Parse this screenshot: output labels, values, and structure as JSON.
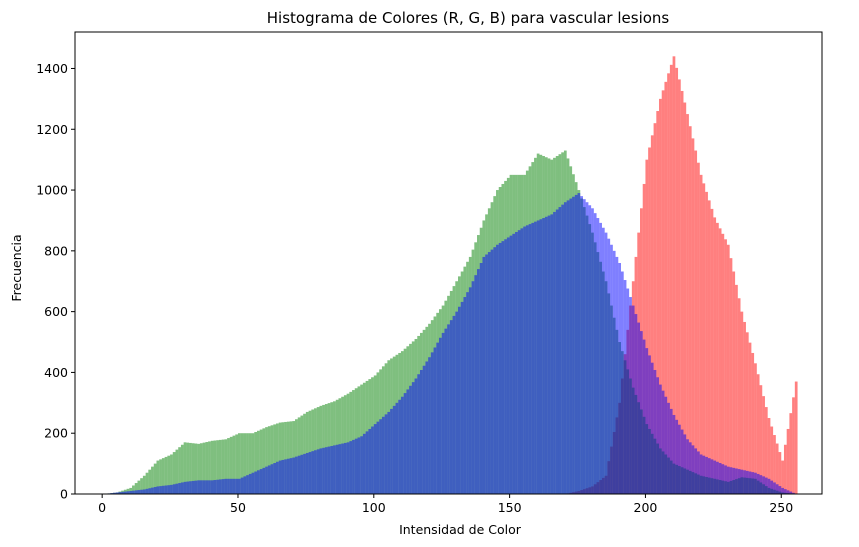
{
  "chart_data": {
    "type": "bar",
    "title": "Histograma de Colores (R, G, B) para vascular lesions",
    "xlabel": "Intensidad de Color",
    "ylabel": "Frecuencia",
    "xlim": [
      -10,
      265
    ],
    "ylim": [
      0,
      1520
    ],
    "xticks": [
      0,
      50,
      100,
      150,
      200,
      250
    ],
    "yticks": [
      0,
      200,
      400,
      600,
      800,
      1000,
      1200,
      1400
    ],
    "x": [
      0,
      5,
      10,
      15,
      20,
      25,
      30,
      35,
      40,
      45,
      50,
      55,
      60,
      65,
      70,
      75,
      80,
      85,
      90,
      95,
      100,
      105,
      110,
      115,
      120,
      125,
      130,
      135,
      140,
      145,
      150,
      155,
      160,
      165,
      170,
      175,
      180,
      185,
      190,
      195,
      200,
      205,
      210,
      215,
      220,
      225,
      230,
      235,
      240,
      245,
      250,
      255
    ],
    "series": [
      {
        "name": "R",
        "color": "#ff0000",
        "alpha": 0.5,
        "values": [
          0,
          0,
          0,
          0,
          0,
          0,
          0,
          0,
          0,
          0,
          0,
          0,
          0,
          0,
          0,
          0,
          0,
          0,
          0,
          0,
          0,
          0,
          0,
          0,
          0,
          0,
          0,
          0,
          0,
          0,
          0,
          0,
          0,
          0,
          0,
          10,
          25,
          60,
          300,
          700,
          1100,
          1300,
          1440,
          1250,
          1050,
          910,
          820,
          600,
          430,
          250,
          110,
          370
        ]
      },
      {
        "name": "G",
        "color": "#008000",
        "alpha": 0.5,
        "values": [
          0,
          5,
          20,
          60,
          110,
          130,
          170,
          165,
          175,
          180,
          200,
          200,
          220,
          235,
          240,
          270,
          290,
          305,
          330,
          360,
          390,
          440,
          470,
          510,
          560,
          620,
          700,
          780,
          900,
          1000,
          1050,
          1050,
          1120,
          1100,
          1130,
          1000,
          860,
          700,
          500,
          350,
          230,
          150,
          100,
          80,
          60,
          50,
          40,
          55,
          50,
          20,
          5,
          0
        ]
      },
      {
        "name": "B",
        "color": "#0000ff",
        "alpha": 0.5,
        "values": [
          0,
          5,
          10,
          15,
          25,
          30,
          40,
          45,
          45,
          50,
          50,
          70,
          90,
          110,
          120,
          135,
          150,
          160,
          170,
          190,
          230,
          270,
          320,
          380,
          450,
          530,
          600,
          680,
          780,
          820,
          850,
          880,
          900,
          920,
          960,
          990,
          940,
          860,
          760,
          620,
          480,
          360,
          260,
          180,
          130,
          110,
          90,
          80,
          70,
          50,
          20,
          0
        ]
      }
    ]
  }
}
